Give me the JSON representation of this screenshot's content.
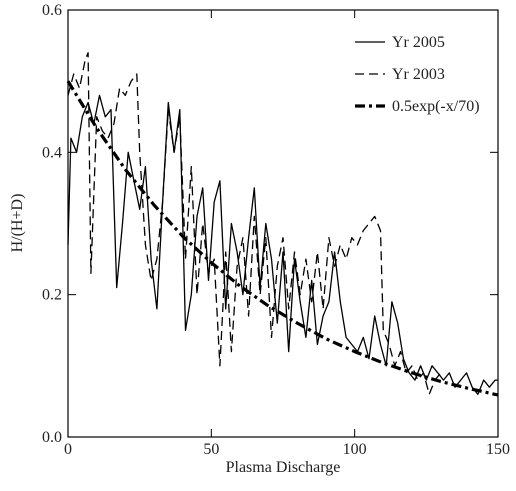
{
  "chart_data": {
    "type": "line",
    "xlabel": "Plasma Discharge",
    "ylabel": "H/(H+D)",
    "xlim": [
      0,
      150
    ],
    "ylim": [
      0,
      0.6
    ],
    "xticks": [
      0,
      50,
      100,
      150
    ],
    "yticks": [
      {
        "value": 0,
        "label": "0.0"
      },
      0.2,
      0.4,
      0.6
    ],
    "legend": "upper right",
    "series": [
      {
        "name": "Yr 2005",
        "color": "#000000",
        "linestyle": "solid",
        "x": [
          0,
          1,
          3,
          5,
          7,
          9,
          11,
          13,
          15,
          17,
          19,
          21,
          23,
          25,
          27,
          29,
          31,
          33,
          35,
          37,
          39,
          41,
          43,
          45,
          47,
          49,
          51,
          53,
          55,
          57,
          59,
          61,
          63,
          65,
          67,
          69,
          71,
          73,
          75,
          77,
          79,
          81,
          83,
          85,
          87,
          89,
          91,
          93,
          95,
          97,
          99,
          101,
          103,
          105,
          107,
          109,
          111,
          113,
          115,
          117,
          119,
          121,
          123,
          125,
          127,
          129,
          131,
          133,
          135,
          137,
          139,
          141,
          143,
          145,
          147,
          149,
          150
        ],
        "values": [
          0.27,
          0.42,
          0.4,
          0.45,
          0.47,
          0.44,
          0.48,
          0.45,
          0.46,
          0.21,
          0.3,
          0.4,
          0.36,
          0.32,
          0.38,
          0.25,
          0.18,
          0.33,
          0.47,
          0.4,
          0.46,
          0.15,
          0.2,
          0.31,
          0.35,
          0.22,
          0.33,
          0.36,
          0.18,
          0.3,
          0.26,
          0.2,
          0.28,
          0.35,
          0.21,
          0.3,
          0.25,
          0.16,
          0.26,
          0.12,
          0.25,
          0.19,
          0.14,
          0.22,
          0.13,
          0.17,
          0.19,
          0.26,
          0.19,
          0.14,
          0.13,
          0.12,
          0.14,
          0.11,
          0.17,
          0.13,
          0.1,
          0.19,
          0.16,
          0.11,
          0.09,
          0.08,
          0.1,
          0.08,
          0.1,
          0.09,
          0.08,
          0.09,
          0.07,
          0.08,
          0.09,
          0.07,
          0.06,
          0.08,
          0.07,
          0.08,
          0.08
        ]
      },
      {
        "name": "Yr 2003",
        "color": "#000000",
        "linestyle": "dashed",
        "x": [
          0,
          2,
          4,
          6,
          7,
          8,
          10,
          12,
          14,
          16,
          18,
          20,
          22,
          24,
          25,
          27,
          29,
          31,
          33,
          35,
          37,
          39,
          41,
          43,
          45,
          47,
          49,
          51,
          53,
          55,
          57,
          59,
          61,
          63,
          65,
          67,
          69,
          71,
          73,
          75,
          77,
          79,
          81,
          83,
          85,
          87,
          89,
          91,
          93,
          95,
          97,
          99,
          101,
          103,
          105,
          107,
          109,
          110,
          112,
          114,
          116,
          118,
          120,
          122,
          124,
          126,
          128,
          130
        ],
        "values": [
          0.48,
          0.51,
          0.49,
          0.53,
          0.54,
          0.23,
          0.45,
          0.43,
          0.42,
          0.44,
          0.49,
          0.48,
          0.5,
          0.51,
          0.4,
          0.27,
          0.22,
          0.25,
          0.33,
          0.46,
          0.4,
          0.45,
          0.25,
          0.38,
          0.2,
          0.3,
          0.23,
          0.25,
          0.1,
          0.26,
          0.12,
          0.24,
          0.28,
          0.17,
          0.31,
          0.2,
          0.28,
          0.14,
          0.24,
          0.28,
          0.18,
          0.26,
          0.2,
          0.25,
          0.19,
          0.26,
          0.18,
          0.28,
          0.24,
          0.27,
          0.25,
          0.28,
          0.27,
          0.29,
          0.3,
          0.31,
          0.29,
          0.15,
          0.13,
          0.1,
          0.12,
          0.09,
          0.1,
          0.08,
          0.09,
          0.06,
          0.08,
          0.09
        ]
      },
      {
        "name": "0.5exp(-x/70)",
        "color": "#000000",
        "linestyle": "dashdot",
        "x": [
          0,
          10,
          20,
          30,
          40,
          50,
          60,
          70,
          80,
          90,
          100,
          110,
          120,
          130,
          140,
          150
        ],
        "values": [
          0.5,
          0.434,
          0.376,
          0.326,
          0.282,
          0.245,
          0.212,
          0.184,
          0.16,
          0.138,
          0.12,
          0.104,
          0.09,
          0.078,
          0.068,
          0.059
        ]
      }
    ]
  }
}
